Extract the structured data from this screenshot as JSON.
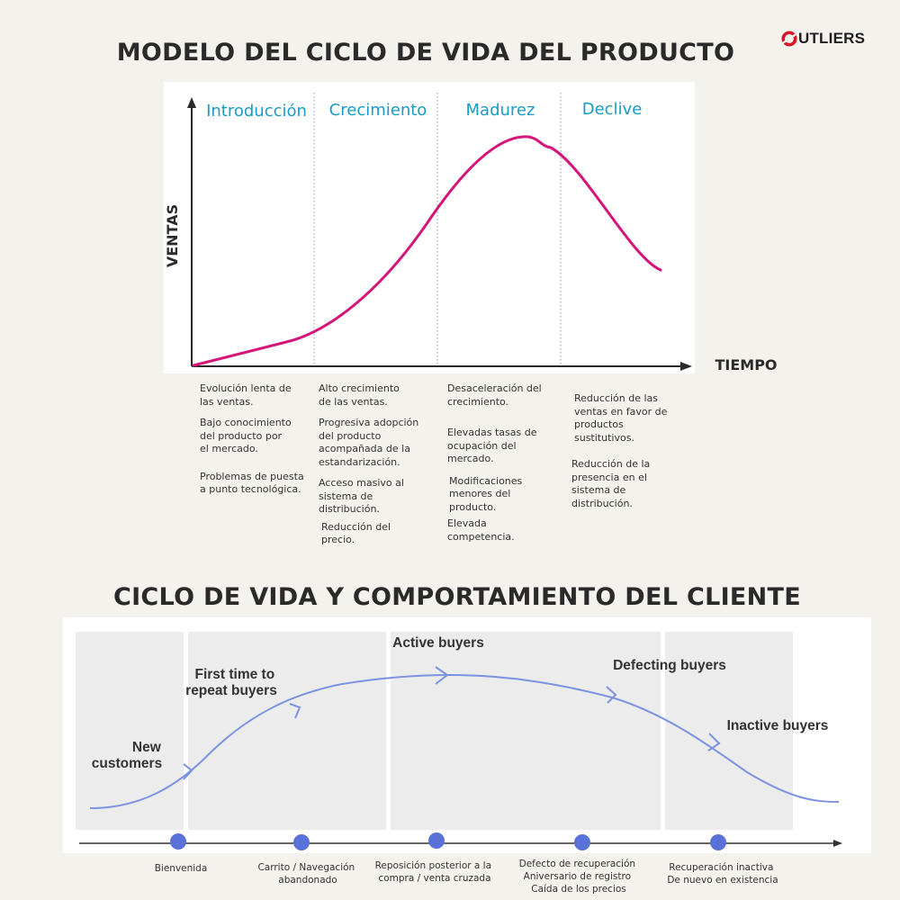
{
  "brand": {
    "logo_text": "UTLIERS",
    "logo_color": "#d7192c"
  },
  "section1": {
    "title": "MODELO DEL CICLO DE VIDA DEL PRODUCTO",
    "y_axis_label": "VENTAS",
    "x_axis_label": "TIEMPO",
    "stages": [
      "Introducción",
      "Crecimiento",
      "Madurez",
      "Declive"
    ],
    "stage_color": "#1a9bc7",
    "curve_color": "#d4157a",
    "notes": [
      [
        "Evolución lenta de\nlas ventas.",
        "Bajo conocimiento\ndel producto por\nel mercado.",
        "Problemas de puesta\na punto tecnológica."
      ],
      [
        "Alto crecimiento\nde las ventas.",
        "Progresiva adopción\ndel producto\nacompañada de la\nestandarización.",
        "Acceso masivo al\nsistema de\ndistribución.",
        "Reducción del\nprecio."
      ],
      [
        "Desaceleración del\ncrecimiento.",
        "Elevadas tasas de\nocupación del\nmercado.",
        "Modificaciones\nmenores del\nproducto.",
        "Elevada\ncompetencia."
      ],
      [
        "Reducción de las\nventas en favor de\nproductos\nsustitutivos.",
        "Reducción de la\npresencia en el\nsistema de\ndistribución."
      ]
    ]
  },
  "section2": {
    "title": "CICLO DE VIDA Y COMPORTAMIENTO DEL CLIENTE",
    "curve_color": "#7b93e0",
    "dot_color": "#5a72d8",
    "stages": [
      {
        "label": "New\ncustomers"
      },
      {
        "label": "First time to\nrepeat buyers"
      },
      {
        "label": "Active buyers"
      },
      {
        "label": "Defecting buyers"
      },
      {
        "label": "Inactive buyers"
      }
    ],
    "events": [
      "Bienvenida",
      "Carrito / Navegación\nabandonado",
      "Reposición posterior a la\ncompra / venta cruzada",
      "Defecto de recuperación\nAniversario de registro\nCaída de los precios",
      "Recuperación inactiva\nDe nuevo en existencia"
    ]
  }
}
